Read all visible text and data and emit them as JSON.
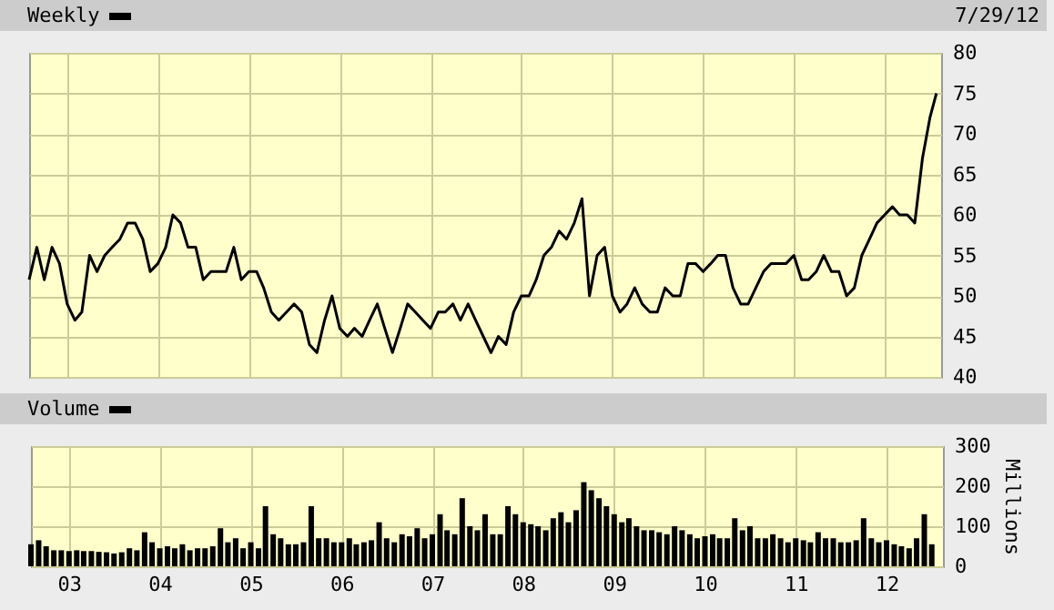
{
  "chart_data": [
    {
      "type": "line",
      "title": "Weekly",
      "annotations": [
        "7/29/12"
      ],
      "x": [
        "2002-08",
        "2002-09",
        "2002-10",
        "2002-11",
        "2002-12",
        "2003-01",
        "2003-02",
        "2003-03",
        "2003-04",
        "2003-05",
        "2003-06",
        "2003-07",
        "2003-08",
        "2003-09",
        "2003-10",
        "2003-11",
        "2003-12",
        "2004-01",
        "2004-02",
        "2004-03",
        "2004-04",
        "2004-05",
        "2004-06",
        "2004-07",
        "2004-08",
        "2004-09",
        "2004-10",
        "2004-11",
        "2004-12",
        "2005-01",
        "2005-02",
        "2005-03",
        "2005-04",
        "2005-05",
        "2005-06",
        "2005-07",
        "2005-08",
        "2005-09",
        "2005-10",
        "2005-11",
        "2005-12",
        "2006-01",
        "2006-02",
        "2006-03",
        "2006-04",
        "2006-05",
        "2006-06",
        "2006-07",
        "2006-08",
        "2006-09",
        "2006-10",
        "2006-11",
        "2006-12",
        "2007-01",
        "2007-02",
        "2007-03",
        "2007-04",
        "2007-05",
        "2007-06",
        "2007-07",
        "2007-08",
        "2007-09",
        "2007-10",
        "2007-11",
        "2007-12",
        "2008-01",
        "2008-02",
        "2008-03",
        "2008-04",
        "2008-05",
        "2008-06",
        "2008-07",
        "2008-08",
        "2008-09",
        "2008-10",
        "2008-11",
        "2008-12",
        "2009-01",
        "2009-02",
        "2009-03",
        "2009-04",
        "2009-05",
        "2009-06",
        "2009-07",
        "2009-08",
        "2009-09",
        "2009-10",
        "2009-11",
        "2009-12",
        "2010-01",
        "2010-02",
        "2010-03",
        "2010-04",
        "2010-05",
        "2010-06",
        "2010-07",
        "2010-08",
        "2010-09",
        "2010-10",
        "2010-11",
        "2010-12",
        "2011-01",
        "2011-02",
        "2011-03",
        "2011-04",
        "2011-05",
        "2011-06",
        "2011-07",
        "2011-08",
        "2011-09",
        "2011-10",
        "2011-11",
        "2011-12",
        "2012-01",
        "2012-02",
        "2012-03",
        "2012-04",
        "2012-05",
        "2012-06",
        "2012-07",
        "2012-07-27"
      ],
      "series": [
        {
          "color": "#000000",
          "values": [
            52,
            56,
            52,
            56,
            54,
            49,
            47,
            48,
            55,
            53,
            55,
            56,
            57,
            59,
            59,
            57,
            53,
            54,
            56,
            60,
            59,
            56,
            56,
            52,
            53,
            53,
            53,
            56,
            52,
            53,
            53,
            51,
            48,
            47,
            48,
            49,
            48,
            44,
            43,
            47,
            50,
            46,
            45,
            46,
            45,
            47,
            49,
            46,
            43,
            46,
            49,
            48,
            47,
            46,
            48,
            48,
            49,
            47,
            49,
            47,
            45,
            43,
            45,
            44,
            48,
            50,
            50,
            52,
            55,
            56,
            58,
            57,
            59,
            62,
            50,
            55,
            56,
            50,
            48,
            49,
            51,
            49,
            48,
            48,
            51,
            50,
            50,
            54,
            54,
            53,
            54,
            55,
            55,
            51,
            49,
            49,
            51,
            53,
            54,
            54,
            54,
            55,
            52,
            52,
            53,
            55,
            53,
            53,
            50,
            51,
            55,
            57,
            59,
            60,
            61,
            60,
            60,
            59,
            67,
            72,
            75
          ]
        }
      ],
      "xlim": [
        "2002-08",
        "2012-08-15"
      ],
      "xticks": [
        {
          "value": "2003",
          "label": null
        },
        {
          "value": "2004",
          "label": null
        },
        {
          "value": "2005",
          "label": null
        },
        {
          "value": "2006",
          "label": null
        },
        {
          "value": "2007",
          "label": null
        },
        {
          "value": "2008",
          "label": null
        },
        {
          "value": "2009",
          "label": null
        },
        {
          "value": "2010",
          "label": null
        },
        {
          "value": "2011",
          "label": null
        },
        {
          "value": "2012",
          "label": null
        }
      ],
      "ylim": [
        40,
        80
      ],
      "yticks": [
        40,
        45,
        50,
        55,
        60,
        65,
        70,
        75,
        80
      ],
      "grid": true,
      "tick_labels": "y"
    },
    {
      "type": "bar",
      "title": "Volume",
      "ylabel": "Millions",
      "x": [
        "2002-08",
        "2002-09",
        "2002-10",
        "2002-11",
        "2002-12",
        "2003-01",
        "2003-02",
        "2003-03",
        "2003-04",
        "2003-05",
        "2003-06",
        "2003-07",
        "2003-08",
        "2003-09",
        "2003-10",
        "2003-11",
        "2003-12",
        "2004-01",
        "2004-02",
        "2004-03",
        "2004-04",
        "2004-05",
        "2004-06",
        "2004-07",
        "2004-08",
        "2004-09",
        "2004-10",
        "2004-11",
        "2004-12",
        "2005-01",
        "2005-02",
        "2005-03",
        "2005-04",
        "2005-05",
        "2005-06",
        "2005-07",
        "2005-08",
        "2005-09",
        "2005-10",
        "2005-11",
        "2005-12",
        "2006-01",
        "2006-02",
        "2006-03",
        "2006-04",
        "2006-05",
        "2006-06",
        "2006-07",
        "2006-08",
        "2006-09",
        "2006-10",
        "2006-11",
        "2006-12",
        "2007-01",
        "2007-02",
        "2007-03",
        "2007-04",
        "2007-05",
        "2007-06",
        "2007-07",
        "2007-08",
        "2007-09",
        "2007-10",
        "2007-11",
        "2007-12",
        "2008-01",
        "2008-02",
        "2008-03",
        "2008-04",
        "2008-05",
        "2008-06",
        "2008-07",
        "2008-08",
        "2008-09",
        "2008-10",
        "2008-11",
        "2008-12",
        "2009-01",
        "2009-02",
        "2009-03",
        "2009-04",
        "2009-05",
        "2009-06",
        "2009-07",
        "2009-08",
        "2009-09",
        "2009-10",
        "2009-11",
        "2009-12",
        "2010-01",
        "2010-02",
        "2010-03",
        "2010-04",
        "2010-05",
        "2010-06",
        "2010-07",
        "2010-08",
        "2010-09",
        "2010-10",
        "2010-11",
        "2010-12",
        "2011-01",
        "2011-02",
        "2011-03",
        "2011-04",
        "2011-05",
        "2011-06",
        "2011-07",
        "2011-08",
        "2011-09",
        "2011-10",
        "2011-11",
        "2011-12",
        "2012-01",
        "2012-02",
        "2012-03",
        "2012-04",
        "2012-05",
        "2012-06",
        "2012-07"
      ],
      "series": [
        {
          "color": "#000000",
          "values": [
            55,
            65,
            50,
            40,
            40,
            38,
            40,
            38,
            38,
            36,
            35,
            32,
            35,
            45,
            40,
            85,
            60,
            45,
            50,
            45,
            55,
            40,
            45,
            45,
            50,
            95,
            60,
            70,
            45,
            60,
            45,
            150,
            80,
            70,
            55,
            55,
            60,
            150,
            70,
            70,
            60,
            60,
            70,
            55,
            60,
            65,
            110,
            70,
            60,
            80,
            75,
            95,
            70,
            80,
            130,
            90,
            80,
            170,
            100,
            90,
            130,
            80,
            80,
            150,
            130,
            110,
            105,
            100,
            90,
            120,
            135,
            110,
            140,
            210,
            190,
            170,
            150,
            130,
            110,
            120,
            100,
            90,
            90,
            85,
            80,
            100,
            90,
            80,
            70,
            75,
            80,
            70,
            70,
            120,
            90,
            100,
            70,
            70,
            80,
            70,
            60,
            70,
            65,
            60,
            85,
            70,
            70,
            60,
            60,
            65,
            120,
            70,
            60,
            65,
            55,
            50,
            45,
            70,
            130,
            55
          ]
        }
      ],
      "xlim": [
        "2002-08",
        "2012-08-15"
      ],
      "xticks": [
        {
          "value": "2003",
          "label": "03"
        },
        {
          "value": "2004",
          "label": "04"
        },
        {
          "value": "2005",
          "label": "05"
        },
        {
          "value": "2006",
          "label": "06"
        },
        {
          "value": "2007",
          "label": "07"
        },
        {
          "value": "2008",
          "label": "08"
        },
        {
          "value": "2009",
          "label": "09"
        },
        {
          "value": "2010",
          "label": "10"
        },
        {
          "value": "2011",
          "label": "11"
        },
        {
          "value": "2012",
          "label": "12"
        }
      ],
      "ylim": [
        0,
        300
      ],
      "yticks": [
        0,
        100,
        200,
        300
      ],
      "grid": true
    }
  ]
}
